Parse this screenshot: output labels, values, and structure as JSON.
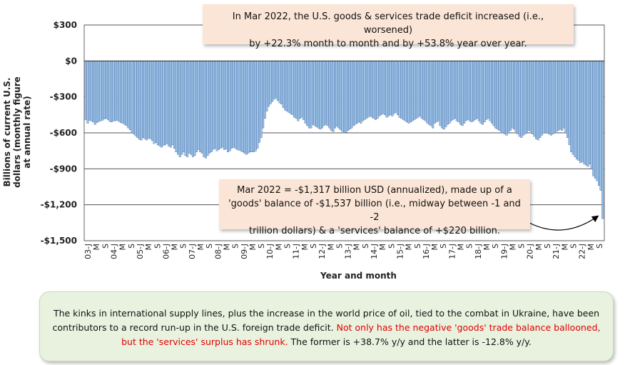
{
  "chart_data": {
    "type": "bar",
    "ylabel": "Billions of current U.S. dollars (monthly figure at annual rate)",
    "xlabel": "Year and month",
    "ylim": [
      -1500,
      300
    ],
    "yticks": [
      300,
      0,
      -300,
      -600,
      -900,
      -1200,
      -1500
    ],
    "ytick_labels": [
      "$300",
      "$0",
      "-$300",
      "-$600",
      "-$900",
      "-$1,200",
      "-$1,500"
    ],
    "grid": true,
    "bar_color": "#9dc3e6",
    "bar_edge_color": "#2f5597",
    "x_tick_labels": [
      "03-J",
      "M",
      "S",
      "04-J",
      "M",
      "S",
      "05-J",
      "M",
      "S",
      "06-J",
      "M",
      "S",
      "07-J",
      "M",
      "S",
      "08-J",
      "M",
      "S",
      "09-J",
      "M",
      "S",
      "10-J",
      "M",
      "S",
      "11-J",
      "M",
      "S",
      "12-J",
      "M",
      "S",
      "13-J",
      "M",
      "S",
      "14-J",
      "M",
      "S",
      "15-J",
      "M",
      "S",
      "16-J",
      "M",
      "S",
      "17-J",
      "M",
      "S",
      "18-J",
      "M",
      "S",
      "19-J",
      "M",
      "S",
      "20-J",
      "M",
      "S",
      "21-J",
      "M",
      "S",
      "22-J",
      "M",
      "S"
    ],
    "series": [
      {
        "x_start": "2003-01",
        "values": [
          -490,
          -520,
          -495,
          -500,
          -510,
          -530,
          -515,
          -505,
          -500,
          -495,
          -485,
          -480,
          -490,
          -505,
          -510,
          -500,
          -500,
          -495,
          -505,
          -515,
          -520,
          -530,
          -540,
          -560,
          -575,
          -600,
          -610,
          -625,
          -640,
          -655,
          -660,
          -640,
          -650,
          -660,
          -645,
          -650,
          -665,
          -690,
          -680,
          -700,
          -710,
          -720,
          -705,
          -700,
          -690,
          -710,
          -720,
          -700,
          -730,
          -760,
          -780,
          -800,
          -780,
          -760,
          -790,
          -800,
          -770,
          -780,
          -800,
          -790,
          -760,
          -740,
          -760,
          -770,
          -800,
          -810,
          -790,
          -770,
          -760,
          -740,
          -730,
          -750,
          -740,
          -730,
          -720,
          -740,
          -735,
          -760,
          -750,
          -730,
          -720,
          -730,
          -740,
          -745,
          -750,
          -760,
          -770,
          -780,
          -770,
          -760,
          -760,
          -760,
          -750,
          -730,
          -680,
          -640,
          -560,
          -480,
          -420,
          -380,
          -360,
          -340,
          -320,
          -310,
          -330,
          -350,
          -360,
          -390,
          -410,
          -420,
          -430,
          -440,
          -450,
          -470,
          -480,
          -500,
          -480,
          -470,
          -490,
          -520,
          -540,
          -560,
          -560,
          -530,
          -540,
          -550,
          -560,
          -570,
          -560,
          -540,
          -530,
          -540,
          -560,
          -580,
          -590,
          -560,
          -545,
          -560,
          -575,
          -590,
          -600,
          -595,
          -580,
          -570,
          -560,
          -540,
          -530,
          -520,
          -510,
          -520,
          -500,
          -490,
          -480,
          -470,
          -460,
          -470,
          -480,
          -490,
          -480,
          -460,
          -450,
          -440,
          -450,
          -470,
          -460,
          -450,
          -460,
          -440,
          -430,
          -450,
          -470,
          -480,
          -490,
          -500,
          -510,
          -520,
          -510,
          -500,
          -490,
          -480,
          -470,
          -460,
          -480,
          -490,
          -500,
          -520,
          -530,
          -540,
          -560,
          -520,
          -510,
          -500,
          -540,
          -560,
          -570,
          -550,
          -530,
          -520,
          -500,
          -490,
          -480,
          -500,
          -510,
          -530,
          -540,
          -520,
          -500,
          -490,
          -500,
          -510,
          -500,
          -490,
          -480,
          -500,
          -520,
          -530,
          -510,
          -490,
          -480,
          -500,
          -520,
          -540,
          -560,
          -570,
          -580,
          -590,
          -600,
          -610,
          -620,
          -600,
          -580,
          -560,
          -570,
          -590,
          -610,
          -630,
          -640,
          -620,
          -610,
          -600,
          -580,
          -590,
          -610,
          -630,
          -650,
          -660,
          -640,
          -620,
          -600,
          -590,
          -600,
          -610,
          -620,
          -610,
          -600,
          -590,
          -580,
          -570,
          -580,
          -560,
          -600,
          -640,
          -700,
          -760,
          -780,
          -800,
          -820,
          -830,
          -850,
          -840,
          -860,
          -870,
          -880,
          -860,
          -900,
          -960,
          -980,
          -1000,
          -1040,
          -1080,
          -1317
        ]
      }
    ]
  },
  "callouts": {
    "top_line1": "In Mar 2022, the U.S. goods & services trade deficit increased (i.e., worsened)",
    "top_line2": "by +22.3% month to month and by +53.8% year over year.",
    "mid_line1": "Mar 2022  = -$1,317 billion USD (annualized), made up of a",
    "mid_line2": "'goods' balance of -$1,537 billion (i.e., midway between -1 and -2",
    "mid_line3": "trillion dollars) & a 'services' balance of +$220 billion."
  },
  "note": {
    "part1": "The kinks in international supply lines, plus the increase in the world price of oil, tied to the combat in Ukraine, have been contributors to a record run-up in the U.S. foreign trade deficit.",
    "part2_red": "Not only has the negative 'goods' trade  balance ballooned, but the 'services' surplus has shrunk.",
    "part3": "The former is +38.7% y/y and the latter is -12.8% y/y."
  }
}
